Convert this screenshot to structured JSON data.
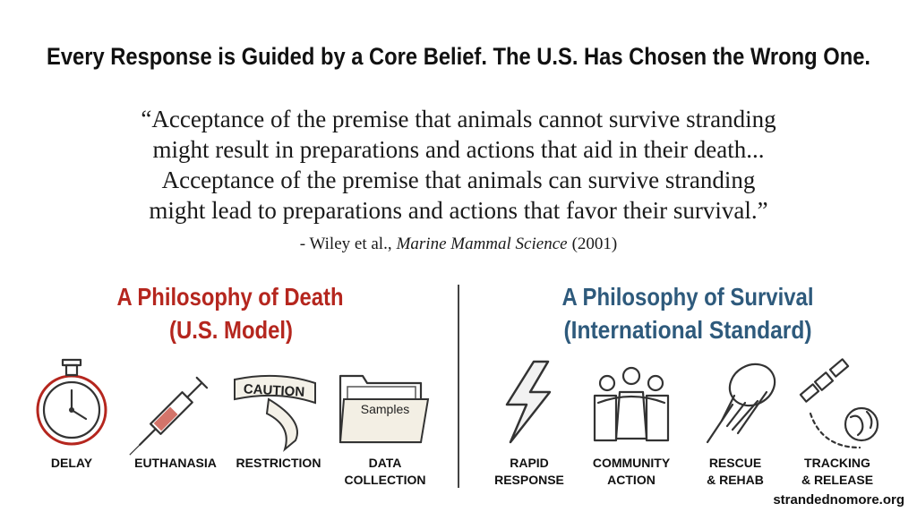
{
  "header": {
    "title": "Every Response is Guided by a Core Belief. The U.S. Has Chosen the Wrong One."
  },
  "quote": {
    "lines": [
      "“Acceptance of the premise that animals cannot survive stranding",
      "might result in preparations and actions that aid in their death...",
      "Acceptance of the premise that animals can survive stranding",
      "might lead to preparations and actions that favor their survival.”"
    ],
    "citation": {
      "author": "- Wiley et al.,",
      "journal": "Marine Mammal Science",
      "year": "(2001)"
    }
  },
  "left": {
    "heading": [
      "A Philosophy of Death",
      "(U.S. Model)"
    ],
    "items": [
      {
        "label": [
          "DELAY"
        ]
      },
      {
        "label": [
          "EUTHANASIA"
        ]
      },
      {
        "label": [
          "RESTRICTION"
        ],
        "icon_text": "CAUTION"
      },
      {
        "label": [
          "DATA",
          "COLLECTION"
        ],
        "icon_text": "Samples"
      }
    ]
  },
  "right": {
    "heading": [
      "A Philosophy of Survival",
      "(International Standard)"
    ],
    "items": [
      {
        "label": [
          "RAPID",
          "RESPONSE"
        ]
      },
      {
        "label": [
          "COMMUNITY",
          "ACTION"
        ]
      },
      {
        "label": [
          "RESCUE",
          "& REHAB"
        ]
      },
      {
        "label": [
          "TRACKING",
          "& RELEASE"
        ]
      }
    ]
  },
  "footer": {
    "url": "strandednomore.org"
  }
}
